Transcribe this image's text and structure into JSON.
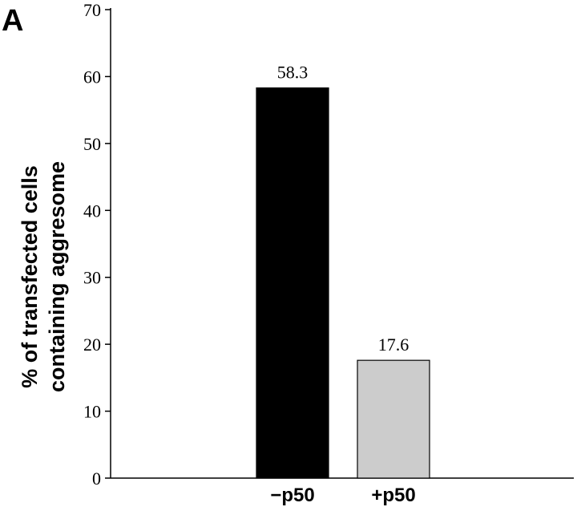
{
  "panel_label": "A",
  "chart_data": {
    "type": "bar",
    "categories": [
      "−p50",
      "+p50"
    ],
    "values": [
      58.3,
      17.6
    ],
    "value_labels": [
      "58.3",
      "17.6"
    ],
    "bar_colors": [
      "#000000",
      "#cccccc"
    ],
    "title": "",
    "xlabel": "",
    "ylabel_lines": [
      "% of transfected cells",
      "containing aggresome"
    ],
    "ylim": [
      0,
      70
    ],
    "yticks": [
      0,
      10,
      20,
      30,
      40,
      50,
      60,
      70
    ],
    "grid": false,
    "legend": "none"
  }
}
